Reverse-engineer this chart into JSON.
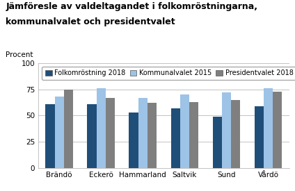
{
  "title_line1": "Jämföresle av valdeltagandet i folkomröstningarna,",
  "title_line2": "kommunalvalet och presidentvalet",
  "ylabel": "Procent",
  "categories": [
    "Brändö",
    "Eckerö",
    "Hammarland",
    "Saltvik",
    "Sund",
    "Vårdö"
  ],
  "series": {
    "Folkomröstning 2018": [
      61,
      61,
      53,
      57,
      49,
      59
    ],
    "Kommunalvalet 2015": [
      68,
      76,
      67,
      70,
      72,
      76
    ],
    "Presidentvalet 2018": [
      75,
      67,
      62,
      63,
      65,
      73
    ]
  },
  "colors": {
    "Folkomröstning 2018": "#1F4E79",
    "Kommunalvalet 2015": "#9DC3E6",
    "Presidentvalet 2018": "#7F7F7F"
  },
  "ylim": [
    0,
    100
  ],
  "yticks": [
    0,
    25,
    50,
    75,
    100
  ],
  "legend_order": [
    "Folkomröstning 2018",
    "Kommunalvalet 2015",
    "Presidentvalet 2018"
  ],
  "background_color": "#ffffff",
  "bar_width": 0.22,
  "title_fontsize": 9,
  "axis_fontsize": 7.5,
  "legend_fontsize": 7
}
